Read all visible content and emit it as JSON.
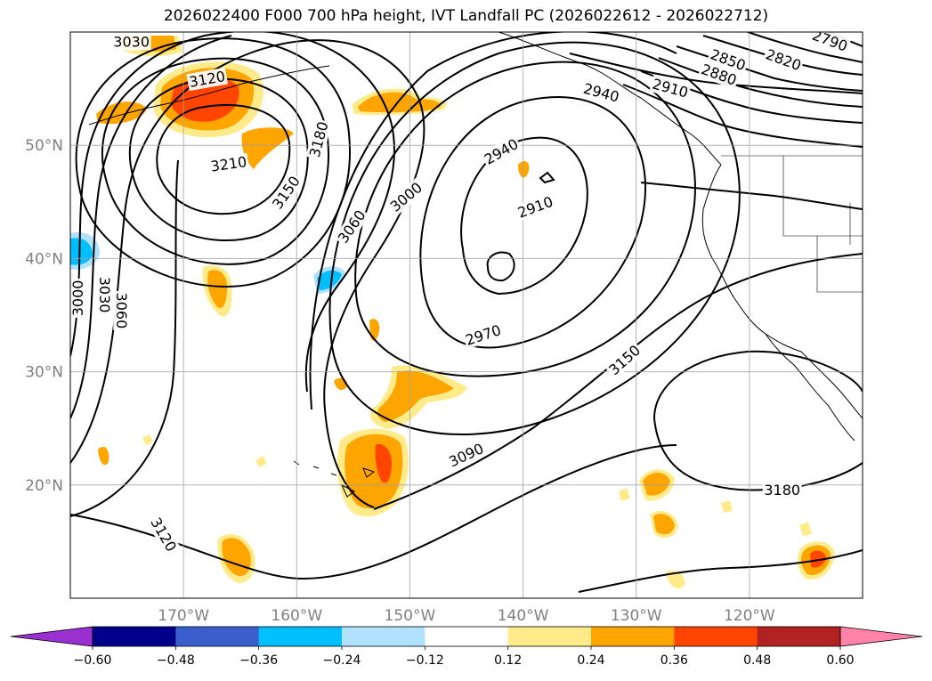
{
  "title": "2026022400 F000 700 hPa height, IVT Landfall PC (2026022612 - 2026022712)",
  "map": {
    "projection": "PlateCarree",
    "lon_range": [
      -180,
      -110
    ],
    "lat_range": [
      10,
      60
    ],
    "lat_ticks": [
      {
        "value": 50,
        "label": "50°N"
      },
      {
        "value": 40,
        "label": "40°N"
      },
      {
        "value": 30,
        "label": "30°N"
      },
      {
        "value": 20,
        "label": "20°N"
      }
    ],
    "lon_ticks": [
      {
        "value": -170,
        "label": "170°W"
      },
      {
        "value": -160,
        "label": "160°W"
      },
      {
        "value": -150,
        "label": "150°W"
      },
      {
        "value": -140,
        "label": "140°W"
      },
      {
        "value": -130,
        "label": "130°W"
      },
      {
        "value": -120,
        "label": "120°W"
      }
    ],
    "gridlines": true,
    "contour_variable": "700 hPa geopotential height",
    "contour_labels": [
      {
        "text": "3030",
        "lon": -174.6,
        "lat": 59.1,
        "angle": 0
      },
      {
        "text": "3120",
        "lon": -167.9,
        "lat": 55.8,
        "angle": -10
      },
      {
        "text": "3210",
        "lon": -166.0,
        "lat": 48.3,
        "angle": -8
      },
      {
        "text": "3180",
        "lon": -158.0,
        "lat": 50.5,
        "angle": -75
      },
      {
        "text": "3150",
        "lon": -160.9,
        "lat": 45.8,
        "angle": -55
      },
      {
        "text": "3060",
        "lon": -155.1,
        "lat": 42.8,
        "angle": -55
      },
      {
        "text": "3000",
        "lon": -150.3,
        "lat": 45.4,
        "angle": -40
      },
      {
        "text": "2940",
        "lon": -141.9,
        "lat": 49.4,
        "angle": -30
      },
      {
        "text": "2910",
        "lon": -138.9,
        "lat": 44.5,
        "angle": -20
      },
      {
        "text": "2970",
        "lon": -143.5,
        "lat": 33.2,
        "angle": -18
      },
      {
        "text": "3150",
        "lon": -131.0,
        "lat": 31.0,
        "angle": -42
      },
      {
        "text": "3090",
        "lon": -145.0,
        "lat": 22.6,
        "angle": -25
      },
      {
        "text": "3180",
        "lon": -117.1,
        "lat": 19.5,
        "angle": 0
      },
      {
        "text": "3120",
        "lon": -171.8,
        "lat": 15.6,
        "angle": 60
      },
      {
        "text": "3000",
        "lon": -179.3,
        "lat": 36.5,
        "angle": -90
      },
      {
        "text": "3030",
        "lon": -177.0,
        "lat": 36.8,
        "angle": 90
      },
      {
        "text": "3060",
        "lon": -175.5,
        "lat": 35.4,
        "angle": 90
      },
      {
        "text": "2940",
        "lon": -133.1,
        "lat": 54.6,
        "angle": 15
      },
      {
        "text": "2910",
        "lon": -127.0,
        "lat": 55.0,
        "angle": 15
      },
      {
        "text": "2880",
        "lon": -122.7,
        "lat": 56.2,
        "angle": 20
      },
      {
        "text": "2850",
        "lon": -121.9,
        "lat": 57.5,
        "angle": 20
      },
      {
        "text": "2820",
        "lon": -117.0,
        "lat": 57.5,
        "angle": 20
      },
      {
        "text": "2790",
        "lon": -112.9,
        "lat": 59.2,
        "angle": 20
      }
    ],
    "shading_variable": "IVT Landfall PC",
    "shaded_features": [
      {
        "sign": "positive",
        "max_level": 0.36,
        "lon": -166.5,
        "lat": 55.0
      },
      {
        "sign": "positive",
        "max_level": 0.24,
        "lon": -173.0,
        "lat": 59.3
      },
      {
        "sign": "positive",
        "max_level": 0.24,
        "lon": -151.5,
        "lat": 54.2
      },
      {
        "sign": "positive",
        "max_level": 0.24,
        "lon": -162.5,
        "lat": 49.7
      },
      {
        "sign": "positive",
        "max_level": 0.24,
        "lon": -166.7,
        "lat": 37.5
      },
      {
        "sign": "negative",
        "max_level": -0.24,
        "lon": -179.2,
        "lat": 40.7
      },
      {
        "sign": "negative",
        "max_level": -0.24,
        "lon": -155.9,
        "lat": 38.0
      },
      {
        "sign": "positive",
        "max_level": 0.24,
        "lon": -148.5,
        "lat": 27.0
      },
      {
        "sign": "positive",
        "max_level": 0.36,
        "lon": -152.5,
        "lat": 20.8
      },
      {
        "sign": "positive",
        "max_level": 0.24,
        "lon": -165.8,
        "lat": 12.5
      },
      {
        "sign": "positive",
        "max_level": 0.24,
        "lon": -128.0,
        "lat": 20.2
      },
      {
        "sign": "positive",
        "max_level": 0.24,
        "lon": -127.9,
        "lat": 16.2
      },
      {
        "sign": "positive",
        "max_level": 0.36,
        "lon": -114.0,
        "lat": 13.0
      },
      {
        "sign": "positive",
        "max_level": 0.24,
        "lon": -140.0,
        "lat": 47.0
      }
    ]
  },
  "colorbar": {
    "extend": "both",
    "boundaries": [
      -0.72,
      -0.6,
      -0.48,
      -0.36,
      -0.24,
      -0.12,
      0.12,
      0.24,
      0.36,
      0.48,
      0.6,
      0.72
    ],
    "colors": [
      "#9b30d0",
      "#00008b",
      "#3a5fcd",
      "#00bfff",
      "#b0e2ff",
      "#ffffff",
      "#ffeb8a",
      "#ffa500",
      "#ff4500",
      "#b22222",
      "#ff82ab"
    ],
    "under_color": "#9b30d0",
    "over_color": "#ff82ab",
    "tick_labels": [
      "−0.60",
      "−0.48",
      "−0.36",
      "−0.24",
      "−0.12",
      "0.12",
      "0.24",
      "0.36",
      "0.48",
      "0.60"
    ]
  }
}
